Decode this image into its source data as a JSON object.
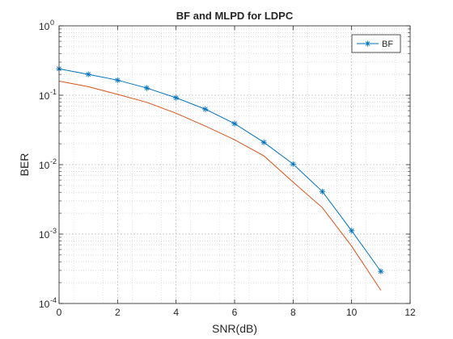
{
  "chart_data": {
    "type": "line",
    "title": "BF and MLPD for LDPC",
    "xlabel": "SNR(dB)",
    "ylabel": "BER",
    "xlim": [
      0,
      12
    ],
    "ylim": [
      0.0001,
      1
    ],
    "yscale": "log",
    "grid": true,
    "minor_grid": true,
    "legend_position": "top-right",
    "x_ticks": [
      "0",
      "2",
      "4",
      "6",
      "8",
      "10",
      "12"
    ],
    "y_ticks": [
      {
        "base": "10",
        "exp": "0"
      },
      {
        "base": "10",
        "exp": "-1"
      },
      {
        "base": "10",
        "exp": "-2"
      },
      {
        "base": "10",
        "exp": "-3"
      },
      {
        "base": "10",
        "exp": "-4"
      }
    ],
    "series": [
      {
        "name": "BF",
        "color": "#0072bd",
        "marker": "asterisk",
        "x": [
          0,
          1,
          2,
          3,
          4,
          5,
          6,
          7,
          8,
          9,
          10,
          11
        ],
        "y": [
          0.24,
          0.2,
          0.165,
          0.127,
          0.092,
          0.063,
          0.039,
          0.021,
          0.0102,
          0.0041,
          0.00112,
          0.00029
        ]
      },
      {
        "color": "#d95319",
        "marker": "none",
        "x": [
          0,
          1,
          2,
          3,
          4,
          5,
          6,
          7,
          8,
          9,
          10,
          11
        ],
        "y": [
          0.16,
          0.133,
          0.103,
          0.079,
          0.055,
          0.036,
          0.0228,
          0.0134,
          0.0056,
          0.0024,
          0.00067,
          0.000155
        ]
      }
    ]
  }
}
